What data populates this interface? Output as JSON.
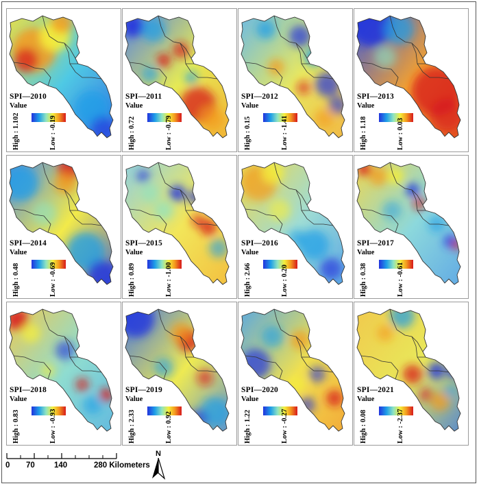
{
  "value_label": "Value",
  "panels": [
    {
      "title": "SPI—2010",
      "high": "High : 1.102",
      "low": "Low : -0.19"
    },
    {
      "title": "SPI—2011",
      "high": "High : 0.72",
      "low": "Low : -0.79"
    },
    {
      "title": "SPI—2012",
      "high": "High : 0.15",
      "low": "Low : -1.41"
    },
    {
      "title": "SPI—2013",
      "high": "High : 1.18",
      "low": "Low : 0.03"
    },
    {
      "title": "SPI—2014",
      "high": "High : 0.48",
      "low": "Low : -0.69"
    },
    {
      "title": "SPI—2015",
      "high": "High : 0.89",
      "low": "Low : -1.00"
    },
    {
      "title": "SPI—2016",
      "high": "High : 2.66",
      "low": "Low : 0.20"
    },
    {
      "title": "SPI—2017",
      "high": "High : 0.38",
      "low": "Low : -0.61"
    },
    {
      "title": "SPI—2018",
      "high": "High : 0.83",
      "low": "Low : -0.93"
    },
    {
      "title": "SPI—2019",
      "high": "High : 2.33",
      "low": "Low : 0.92"
    },
    {
      "title": "SPI—2020",
      "high": "High : 1.22",
      "low": "Low : -0.27"
    },
    {
      "title": "SPI—2021",
      "high": "High : 0.08",
      "low": "Low : -2.37"
    }
  ],
  "scale": {
    "ticks": [
      "0",
      "70",
      "140",
      "280 Kilometers"
    ]
  },
  "north_label": "N",
  "colors": {
    "low": "#2233dd",
    "mid": "#f5ef3a",
    "high": "#d7191c"
  }
}
